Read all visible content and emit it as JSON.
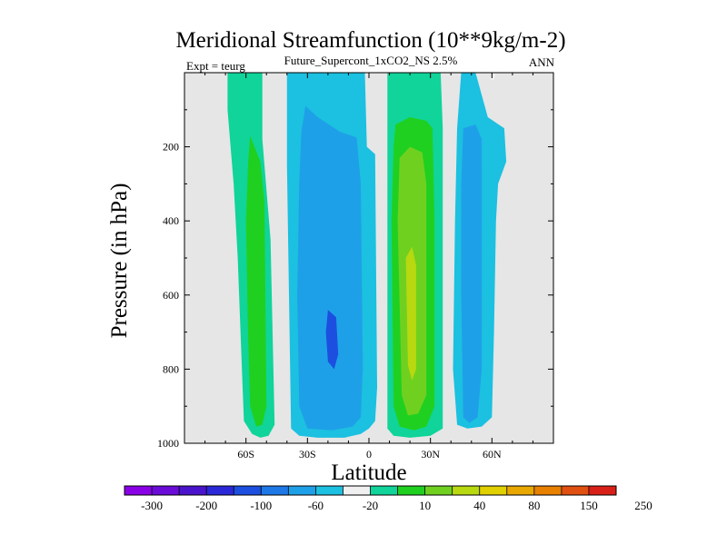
{
  "chart_data": {
    "type": "heatmap",
    "title": "Meridional Streamfunction (10**9kg/m-2)",
    "subtitle": "Future_Supercont_1xCO2_NS 2.5%",
    "left_label": "Expt = teurg",
    "right_label": "ANN",
    "xlabel": "Latitude",
    "ylabel": "Pressure (in hPa)",
    "xlim": [
      -90,
      90
    ],
    "ylim": [
      1000,
      0
    ],
    "x_ticks": [
      {
        "value": -60,
        "label": "60S"
      },
      {
        "value": -30,
        "label": "30S"
      },
      {
        "value": 0,
        "label": "0"
      },
      {
        "value": 30,
        "label": "30N"
      },
      {
        "value": 60,
        "label": "60N"
      }
    ],
    "y_ticks": [
      {
        "value": 200,
        "label": "200"
      },
      {
        "value": 400,
        "label": "400"
      },
      {
        "value": 600,
        "label": "600"
      },
      {
        "value": 800,
        "label": "800"
      },
      {
        "value": 1000,
        "label": "1000"
      }
    ],
    "background_color": "#e6e6e6",
    "colorbar": {
      "colors": [
        "#8a00e6",
        "#6a0bd8",
        "#4a14cc",
        "#2a28d8",
        "#1c4fe0",
        "#1e78e6",
        "#1ea0e8",
        "#1cc0e0",
        "#f0f0f0",
        "#10d49a",
        "#20d020",
        "#70d020",
        "#b8d810",
        "#e0d000",
        "#e8a800",
        "#e88000",
        "#e05010",
        "#d82018"
      ],
      "labels": [
        {
          "boundary": 1,
          "text": "-300"
        },
        {
          "boundary": 3,
          "text": "-200"
        },
        {
          "boundary": 5,
          "text": "-100"
        },
        {
          "boundary": 7,
          "text": "-60"
        },
        {
          "boundary": 9,
          "text": "-20"
        },
        {
          "boundary": 11,
          "text": "10"
        },
        {
          "boundary": 13,
          "text": "40"
        },
        {
          "boundary": 15,
          "text": "80"
        },
        {
          "boundary": 17,
          "text": "150"
        },
        {
          "boundary": 19,
          "text": "250"
        }
      ]
    },
    "regions": [
      {
        "name": "sh-outer-cell",
        "color": "#10d49a",
        "polygon": [
          [
            -69,
            0
          ],
          [
            -52,
            0
          ],
          [
            -52,
            180
          ],
          [
            -48,
            450
          ],
          [
            -46,
            950
          ],
          [
            -49,
            980
          ],
          [
            -53,
            985
          ],
          [
            -57,
            975
          ],
          [
            -61,
            940
          ],
          [
            -62,
            800
          ],
          [
            -64,
            500
          ],
          [
            -66,
            300
          ],
          [
            -69,
            100
          ]
        ]
      },
      {
        "name": "sh-outer-cell-core",
        "color": "#20d020",
        "polygon": [
          [
            -58,
            170
          ],
          [
            -53,
            240
          ],
          [
            -51,
            350
          ],
          [
            -50,
            900
          ],
          [
            -52,
            950
          ],
          [
            -55,
            955
          ],
          [
            -58,
            900
          ],
          [
            -59,
            700
          ],
          [
            -60,
            400
          ],
          [
            -59,
            250
          ]
        ]
      },
      {
        "name": "sh-tropical-cell",
        "color": "#1cc0e0",
        "polygon": [
          [
            -40,
            0
          ],
          [
            -2,
            0
          ],
          [
            -1,
            200
          ],
          [
            3,
            220
          ],
          [
            4,
            850
          ],
          [
            3,
            940
          ],
          [
            0,
            960
          ],
          [
            -4,
            975
          ],
          [
            -12,
            985
          ],
          [
            -25,
            985
          ],
          [
            -34,
            980
          ],
          [
            -38,
            960
          ],
          [
            -39,
            600
          ],
          [
            -40,
            250
          ]
        ]
      },
      {
        "name": "sh-tropical-cell-mid",
        "color": "#1ea0e8",
        "polygon": [
          [
            -31,
            90
          ],
          [
            -25,
            120
          ],
          [
            -14,
            160
          ],
          [
            -6,
            175
          ],
          [
            -4,
            300
          ],
          [
            -3,
            800
          ],
          [
            -4,
            930
          ],
          [
            -8,
            955
          ],
          [
            -18,
            965
          ],
          [
            -30,
            960
          ],
          [
            -34,
            900
          ],
          [
            -35,
            600
          ],
          [
            -34,
            300
          ],
          [
            -33,
            160
          ]
        ]
      },
      {
        "name": "sh-tropical-cell-core",
        "color": "#1c4fe0",
        "polygon": [
          [
            -20,
            640
          ],
          [
            -16,
            660
          ],
          [
            -15,
            760
          ],
          [
            -17,
            800
          ],
          [
            -20,
            780
          ],
          [
            -21,
            700
          ]
        ]
      },
      {
        "name": "nh-tropical-cell",
        "color": "#10d49a",
        "polygon": [
          [
            9,
            0
          ],
          [
            35,
            0
          ],
          [
            36,
            150
          ],
          [
            36,
            960
          ],
          [
            30,
            980
          ],
          [
            20,
            985
          ],
          [
            12,
            980
          ],
          [
            9,
            960
          ],
          [
            9,
            300
          ]
        ]
      },
      {
        "name": "nh-tropical-cell-mid",
        "color": "#20d020",
        "polygon": [
          [
            13,
            140
          ],
          [
            20,
            120
          ],
          [
            28,
            130
          ],
          [
            31,
            150
          ],
          [
            32,
            400
          ],
          [
            32,
            900
          ],
          [
            28,
            955
          ],
          [
            22,
            965
          ],
          [
            15,
            955
          ],
          [
            12,
            900
          ],
          [
            11,
            400
          ],
          [
            12,
            200
          ]
        ]
      },
      {
        "name": "nh-tropical-cell-inner",
        "color": "#70d020",
        "polygon": [
          [
            15,
            230
          ],
          [
            20,
            200
          ],
          [
            26,
            215
          ],
          [
            28,
            300
          ],
          [
            28,
            870
          ],
          [
            24,
            920
          ],
          [
            19,
            925
          ],
          [
            16,
            870
          ],
          [
            14,
            400
          ]
        ]
      },
      {
        "name": "nh-tropical-cell-core",
        "color": "#b8d810",
        "polygon": [
          [
            18,
            500
          ],
          [
            21,
            470
          ],
          [
            23,
            520
          ],
          [
            23,
            800
          ],
          [
            21,
            830
          ],
          [
            19,
            790
          ]
        ]
      },
      {
        "name": "nh-outer-cell",
        "color": "#1cc0e0",
        "polygon": [
          [
            45,
            0
          ],
          [
            52,
            0
          ],
          [
            58,
            120
          ],
          [
            66,
            150
          ],
          [
            67,
            240
          ],
          [
            63,
            300
          ],
          [
            62,
            400
          ],
          [
            61,
            700
          ],
          [
            60,
            930
          ],
          [
            55,
            955
          ],
          [
            48,
            960
          ],
          [
            43,
            950
          ],
          [
            41,
            800
          ],
          [
            42,
            400
          ],
          [
            43,
            150
          ]
        ]
      },
      {
        "name": "nh-outer-cell-mid",
        "color": "#1ea0e8",
        "polygon": [
          [
            46,
            150
          ],
          [
            52,
            140
          ],
          [
            55,
            180
          ],
          [
            55,
            800
          ],
          [
            53,
            930
          ],
          [
            49,
            945
          ],
          [
            46,
            930
          ],
          [
            45,
            600
          ],
          [
            45,
            300
          ]
        ]
      },
      {
        "name": "polar-notch",
        "color": "#f0f0f0",
        "polygon": [
          [
            60,
            0
          ],
          [
            62,
            0
          ],
          [
            61,
            20
          ],
          [
            59,
            18
          ]
        ]
      }
    ]
  }
}
